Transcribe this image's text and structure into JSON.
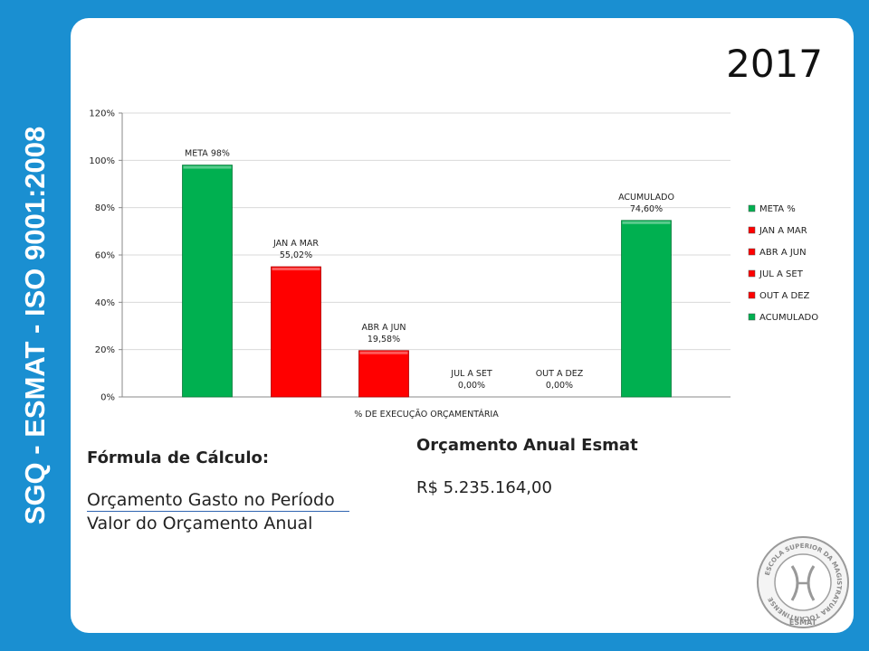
{
  "sidebar": {
    "text": "SGQ - ESMAT - ISO 9001:2008"
  },
  "header": {
    "year": "2017"
  },
  "chart_data": {
    "type": "bar",
    "xlabel": "% DE EXECUÇÃO ORÇAMENTÁRIA",
    "ylim": [
      0,
      120
    ],
    "yticks": [
      "0%",
      "20%",
      "40%",
      "60%",
      "80%",
      "100%",
      "120%"
    ],
    "categories": [
      "META %",
      "JAN A MAR",
      "ABR A JUN",
      "JUL A SET",
      "OUT A DEZ",
      "ACUMULADO"
    ],
    "values": [
      98,
      55.02,
      19.58,
      0,
      0,
      74.6
    ],
    "data_labels": [
      [
        "META 98%"
      ],
      [
        "JAN A MAR",
        "55,02%"
      ],
      [
        "ABR A JUN",
        "19,58%"
      ],
      [
        "JUL A SET",
        "0,00%"
      ],
      [
        "OUT A DEZ",
        "0,00%"
      ],
      [
        "ACUMULADO",
        "74,60%"
      ]
    ],
    "colors": [
      "#00b050",
      "#ff0000",
      "#ff0000",
      "#ff0000",
      "#ff0000",
      "#00b050"
    ],
    "grid": true,
    "legend_position": "right"
  },
  "formula": {
    "title": "Fórmula de Cálculo:",
    "numerator": "Orçamento Gasto no Período",
    "denominator": "Valor do Orçamento Anual"
  },
  "budget": {
    "title": "Orçamento Anual Esmat",
    "value": "R$ 5.235.164,00"
  },
  "seal": {
    "ring_text": "ESCOLA SUPERIOR DA MAGISTRATURA TOCANTINENSE",
    "name": "ESMAT"
  }
}
